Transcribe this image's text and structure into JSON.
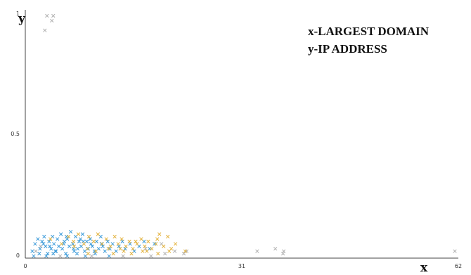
{
  "chart_data": {
    "type": "scatter",
    "x_axis_letter": "x",
    "y_axis_letter": "y",
    "xlim": [
      0,
      62
    ],
    "ylim": [
      0,
      1
    ],
    "x_ticks": [
      "0",
      "31",
      "62"
    ],
    "y_ticks": [
      "0",
      "0.5",
      "1"
    ],
    "annotations": [
      "x-LARGEST DOMAIN",
      "y-IP ADDRESS"
    ],
    "grid": false,
    "colors": {
      "blue": "#3a9ad9",
      "orange": "#e3b23c",
      "gray": "#b0b0b0",
      "axis": "#444444"
    },
    "series": [
      {
        "color_key": "gray",
        "points": [
          [
            2.8,
            0.93
          ],
          [
            3.1,
            0.99
          ],
          [
            3.8,
            0.97
          ],
          [
            4.0,
            0.99
          ],
          [
            33.2,
            0.02
          ],
          [
            35.8,
            0.03
          ],
          [
            36.9,
            0.01
          ],
          [
            37.0,
            0.02
          ],
          [
            61.5,
            0.02
          ],
          [
            21.4,
            0.02
          ],
          [
            22.7,
            0.01
          ],
          [
            23.1,
            0.02
          ],
          [
            20.0,
            0.01
          ],
          [
            1.5,
            0.02
          ],
          [
            2.2,
            0.04
          ],
          [
            17.2,
            0.03
          ],
          [
            19.5,
            0.05
          ],
          [
            5.0,
            0.0
          ],
          [
            9.5,
            0.0
          ],
          [
            14.0,
            0.0
          ],
          [
            18.0,
            0.0
          ]
        ]
      },
      {
        "color_key": "blue",
        "points": [
          [
            1.0,
            0.02
          ],
          [
            1.4,
            0.05
          ],
          [
            1.8,
            0.07
          ],
          [
            2.1,
            0.03
          ],
          [
            2.4,
            0.06
          ],
          [
            2.7,
            0.08
          ],
          [
            2.9,
            0.04
          ],
          [
            3.2,
            0.01
          ],
          [
            3.4,
            0.06
          ],
          [
            3.7,
            0.03
          ],
          [
            3.9,
            0.08
          ],
          [
            4.1,
            0.05
          ],
          [
            4.3,
            0.02
          ],
          [
            4.6,
            0.07
          ],
          [
            4.8,
            0.04
          ],
          [
            5.1,
            0.09
          ],
          [
            5.3,
            0.03
          ],
          [
            5.6,
            0.06
          ],
          [
            5.8,
            0.01
          ],
          [
            6.0,
            0.07
          ],
          [
            6.3,
            0.04
          ],
          [
            6.5,
            0.1
          ],
          [
            6.8,
            0.05
          ],
          [
            7.0,
            0.02
          ],
          [
            7.2,
            0.08
          ],
          [
            7.5,
            0.03
          ],
          [
            7.7,
            0.06
          ],
          [
            8.0,
            0.04
          ],
          [
            8.2,
            0.09
          ],
          [
            8.5,
            0.02
          ],
          [
            8.8,
            0.06
          ],
          [
            9.0,
            0.03
          ],
          [
            9.3,
            0.07
          ],
          [
            9.6,
            0.04
          ],
          [
            9.9,
            0.02
          ],
          [
            10.2,
            0.06
          ],
          [
            10.5,
            0.03
          ],
          [
            10.8,
            0.08
          ],
          [
            11.1,
            0.04
          ],
          [
            11.4,
            0.02
          ],
          [
            11.8,
            0.06
          ],
          [
            12.1,
            0.03
          ],
          [
            12.5,
            0.05
          ],
          [
            13.0,
            0.02
          ],
          [
            13.4,
            0.04
          ],
          [
            13.9,
            0.06
          ],
          [
            14.3,
            0.03
          ],
          [
            15.0,
            0.05
          ],
          [
            15.6,
            0.02
          ],
          [
            16.3,
            0.04
          ],
          [
            17.0,
            0.06
          ],
          [
            17.8,
            0.03
          ],
          [
            18.5,
            0.05
          ],
          [
            1.2,
            0.0
          ],
          [
            2.0,
            0.01
          ],
          [
            3.0,
            0.0
          ],
          [
            4.0,
            0.01
          ],
          [
            6.0,
            0.0
          ],
          [
            7.4,
            0.01
          ],
          [
            8.6,
            0.0
          ],
          [
            10.0,
            0.01
          ],
          [
            12.0,
            0.0
          ],
          [
            3.5,
            0.04
          ],
          [
            5.5,
            0.05
          ],
          [
            7.9,
            0.07
          ],
          [
            9.4,
            0.05
          ],
          [
            6.9,
            0.03
          ],
          [
            4.4,
            0.02
          ],
          [
            2.6,
            0.05
          ],
          [
            5.9,
            0.08
          ],
          [
            8.3,
            0.06
          ],
          [
            10.9,
            0.05
          ]
        ]
      },
      {
        "color_key": "orange",
        "points": [
          [
            3.6,
            0.07
          ],
          [
            5.2,
            0.05
          ],
          [
            6.2,
            0.08
          ],
          [
            6.9,
            0.06
          ],
          [
            7.6,
            0.09
          ],
          [
            8.4,
            0.05
          ],
          [
            9.1,
            0.08
          ],
          [
            9.8,
            0.06
          ],
          [
            10.4,
            0.09
          ],
          [
            11.0,
            0.05
          ],
          [
            11.6,
            0.07
          ],
          [
            12.2,
            0.04
          ],
          [
            12.8,
            0.08
          ],
          [
            13.3,
            0.05
          ],
          [
            13.8,
            0.07
          ],
          [
            14.4,
            0.04
          ],
          [
            14.9,
            0.06
          ],
          [
            15.4,
            0.03
          ],
          [
            16.0,
            0.05
          ],
          [
            16.6,
            0.07
          ],
          [
            17.1,
            0.04
          ],
          [
            17.6,
            0.06
          ],
          [
            18.1,
            0.03
          ],
          [
            18.7,
            0.05
          ],
          [
            19.2,
            0.09
          ],
          [
            19.8,
            0.04
          ],
          [
            20.4,
            0.08
          ],
          [
            20.9,
            0.03
          ],
          [
            21.5,
            0.05
          ],
          [
            10.1,
            0.02
          ],
          [
            12.6,
            0.01
          ],
          [
            15.2,
            0.01
          ],
          [
            16.8,
            0.02
          ],
          [
            19.0,
            0.01
          ],
          [
            20.6,
            0.02
          ],
          [
            14.1,
            0.02
          ],
          [
            11.9,
            0.03
          ],
          [
            9.0,
            0.01
          ],
          [
            13.6,
            0.03
          ],
          [
            17.4,
            0.02
          ],
          [
            18.9,
            0.07
          ],
          [
            22.9,
            0.02
          ],
          [
            7.0,
            0.04
          ],
          [
            8.9,
            0.03
          ],
          [
            15.8,
            0.06
          ]
        ]
      }
    ]
  }
}
